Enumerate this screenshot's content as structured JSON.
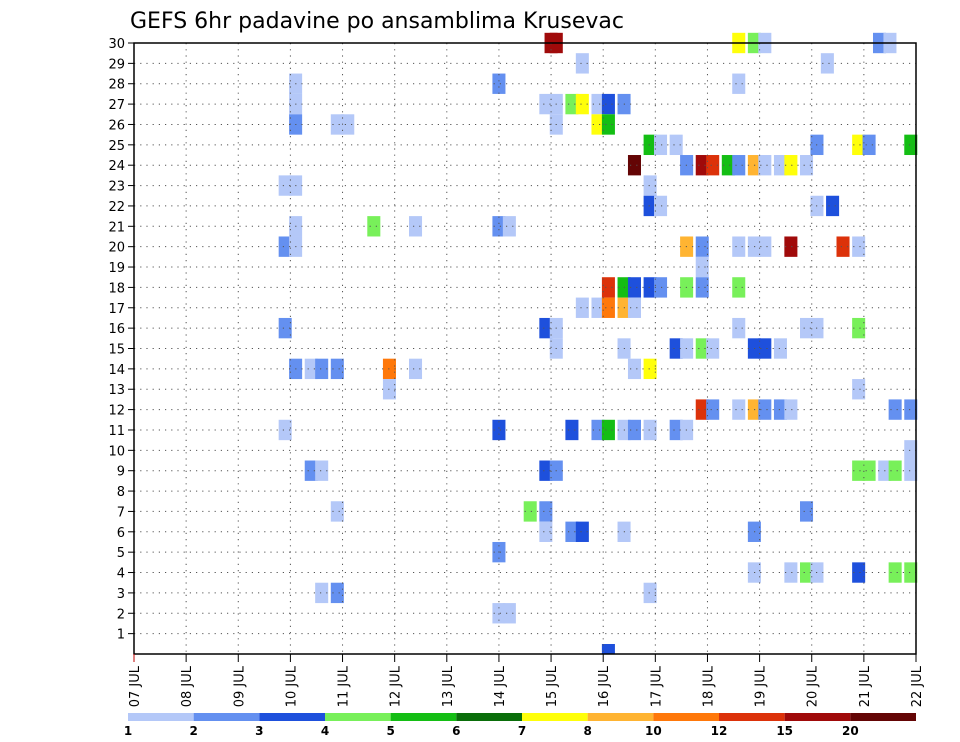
{
  "chart_data": {
    "type": "heatmap",
    "title": "GEFS 6hr padavine po ansamblima Krusevac",
    "xlabel": "",
    "ylabel": "",
    "x_tick_labels": [
      "07 JUL",
      "08 JUL",
      "09 JUL",
      "10 JUL",
      "11 JUL",
      "12 JUL",
      "13 JUL",
      "14 JUL",
      "15 JUL",
      "16 JUL",
      "17 JUL",
      "18 JUL",
      "19 JUL",
      "20 JUL",
      "21 JUL",
      "22 JUL"
    ],
    "x_range_days": [
      7,
      22
    ],
    "y_tick_labels": [
      "1",
      "2",
      "3",
      "4",
      "5",
      "6",
      "7",
      "8",
      "9",
      "10",
      "11",
      "12",
      "13",
      "14",
      "15",
      "16",
      "17",
      "18",
      "19",
      "20",
      "21",
      "22",
      "23",
      "24",
      "25",
      "26",
      "27",
      "28",
      "29",
      "30"
    ],
    "y_range": [
      0,
      30
    ],
    "grid": true,
    "colorbar": {
      "labels": [
        "1",
        "2",
        "3",
        "4",
        "5",
        "6",
        "7",
        "8",
        "10",
        "12",
        "15",
        "20"
      ],
      "colors": [
        "#b4c8f8",
        "#6490f0",
        "#1e50dc",
        "#78f05a",
        "#14be14",
        "#0a6e0a",
        "#ffff0a",
        "#ffb432",
        "#ff780a",
        "#dc320a",
        "#a00a0a",
        "#640505"
      ]
    },
    "cells_note": "each cell: [member, valid-day, colour-bin-lower-edge in mm]",
    "cells": [
      [
        30,
        15.0,
        15
      ],
      [
        30,
        15.1,
        15
      ],
      [
        30,
        18.6,
        7
      ],
      [
        30,
        18.9,
        4
      ],
      [
        30,
        19.1,
        1
      ],
      [
        30,
        21.3,
        2
      ],
      [
        30,
        21.5,
        1
      ],
      [
        29,
        15.6,
        1
      ],
      [
        29,
        20.3,
        1
      ],
      [
        28,
        10.1,
        1
      ],
      [
        28,
        14.0,
        2
      ],
      [
        28,
        18.6,
        1
      ],
      [
        27,
        10.1,
        1
      ],
      [
        27,
        14.9,
        1
      ],
      [
        27,
        15.1,
        1
      ],
      [
        27,
        15.4,
        4
      ],
      [
        27,
        15.6,
        7
      ],
      [
        27,
        15.9,
        1
      ],
      [
        27,
        16.1,
        3
      ],
      [
        27,
        16.4,
        2
      ],
      [
        26,
        10.1,
        2
      ],
      [
        26,
        10.9,
        1
      ],
      [
        26,
        11.1,
        1
      ],
      [
        26,
        15.1,
        1
      ],
      [
        26,
        15.9,
        7
      ],
      [
        26,
        16.1,
        5
      ],
      [
        25,
        16.9,
        5
      ],
      [
        25,
        17.1,
        1
      ],
      [
        25,
        17.4,
        1
      ],
      [
        25,
        20.1,
        2
      ],
      [
        25,
        20.9,
        7
      ],
      [
        25,
        21.1,
        2
      ],
      [
        25,
        21.9,
        5
      ],
      [
        24,
        16.6,
        20
      ],
      [
        24,
        17.6,
        2
      ],
      [
        24,
        17.9,
        15
      ],
      [
        24,
        18.1,
        12
      ],
      [
        24,
        18.4,
        5
      ],
      [
        24,
        18.6,
        2
      ],
      [
        24,
        18.9,
        8
      ],
      [
        24,
        19.1,
        1
      ],
      [
        24,
        19.4,
        1
      ],
      [
        24,
        19.6,
        7
      ],
      [
        24,
        19.9,
        1
      ],
      [
        23,
        9.9,
        1
      ],
      [
        23,
        10.1,
        1
      ],
      [
        23,
        16.9,
        1
      ],
      [
        22,
        16.9,
        3
      ],
      [
        22,
        17.1,
        1
      ],
      [
        22,
        20.1,
        1
      ],
      [
        22,
        20.4,
        3
      ],
      [
        21,
        10.1,
        1
      ],
      [
        21,
        11.6,
        4
      ],
      [
        21,
        12.4,
        1
      ],
      [
        21,
        14.0,
        2
      ],
      [
        21,
        14.2,
        1
      ],
      [
        20,
        9.9,
        2
      ],
      [
        20,
        10.1,
        1
      ],
      [
        20,
        17.6,
        8
      ],
      [
        20,
        17.9,
        2
      ],
      [
        20,
        18.6,
        1
      ],
      [
        20,
        18.9,
        1
      ],
      [
        20,
        19.1,
        1
      ],
      [
        20,
        19.6,
        15
      ],
      [
        20,
        20.6,
        12
      ],
      [
        20,
        20.9,
        1
      ],
      [
        19,
        17.9,
        1
      ],
      [
        18,
        16.1,
        12
      ],
      [
        18,
        16.4,
        5
      ],
      [
        18,
        16.6,
        3
      ],
      [
        18,
        16.9,
        3
      ],
      [
        18,
        17.1,
        2
      ],
      [
        18,
        17.6,
        4
      ],
      [
        18,
        17.9,
        2
      ],
      [
        18,
        18.6,
        4
      ],
      [
        17,
        15.6,
        1
      ],
      [
        17,
        15.9,
        1
      ],
      [
        17,
        16.1,
        10
      ],
      [
        17,
        16.4,
        8
      ],
      [
        17,
        16.6,
        1
      ],
      [
        16,
        9.9,
        2
      ],
      [
        16,
        14.9,
        3
      ],
      [
        16,
        15.1,
        1
      ],
      [
        16,
        18.6,
        1
      ],
      [
        16,
        19.9,
        1
      ],
      [
        16,
        20.1,
        1
      ],
      [
        16,
        20.9,
        4
      ],
      [
        15,
        15.1,
        1
      ],
      [
        15,
        16.4,
        1
      ],
      [
        15,
        17.4,
        3
      ],
      [
        15,
        17.6,
        1
      ],
      [
        15,
        17.9,
        4
      ],
      [
        15,
        18.1,
        1
      ],
      [
        15,
        18.9,
        3
      ],
      [
        15,
        19.1,
        3
      ],
      [
        15,
        19.4,
        1
      ],
      [
        14,
        10.1,
        2
      ],
      [
        14,
        10.4,
        1
      ],
      [
        14,
        10.6,
        2
      ],
      [
        14,
        10.9,
        2
      ],
      [
        14,
        11.9,
        10
      ],
      [
        14,
        12.4,
        1
      ],
      [
        14,
        16.6,
        1
      ],
      [
        14,
        16.9,
        7
      ],
      [
        13,
        11.9,
        1
      ],
      [
        13,
        20.9,
        1
      ],
      [
        12,
        17.9,
        12
      ],
      [
        12,
        18.1,
        2
      ],
      [
        12,
        18.6,
        1
      ],
      [
        12,
        18.9,
        8
      ],
      [
        12,
        19.1,
        2
      ],
      [
        12,
        19.4,
        2
      ],
      [
        12,
        19.6,
        1
      ],
      [
        12,
        21.6,
        2
      ],
      [
        12,
        21.9,
        2
      ],
      [
        11,
        9.9,
        1
      ],
      [
        11,
        14.0,
        3
      ],
      [
        11,
        15.4,
        3
      ],
      [
        11,
        15.9,
        2
      ],
      [
        11,
        16.1,
        5
      ],
      [
        11,
        16.4,
        1
      ],
      [
        11,
        16.6,
        2
      ],
      [
        11,
        16.9,
        1
      ],
      [
        11,
        17.4,
        2
      ],
      [
        11,
        17.6,
        1
      ],
      [
        10,
        21.9,
        1
      ],
      [
        9,
        10.4,
        2
      ],
      [
        9,
        10.6,
        1
      ],
      [
        9,
        14.9,
        3
      ],
      [
        9,
        15.1,
        2
      ],
      [
        9,
        20.9,
        4
      ],
      [
        9,
        21.1,
        4
      ],
      [
        9,
        21.4,
        1
      ],
      [
        9,
        21.6,
        4
      ],
      [
        9,
        21.9,
        1
      ],
      [
        7,
        14.6,
        4
      ],
      [
        7,
        14.9,
        2
      ],
      [
        7,
        10.9,
        1
      ],
      [
        7,
        19.9,
        2
      ],
      [
        6,
        14.9,
        1
      ],
      [
        6,
        15.4,
        2
      ],
      [
        6,
        15.6,
        3
      ],
      [
        6,
        16.4,
        1
      ],
      [
        6,
        18.9,
        2
      ],
      [
        5,
        14.0,
        2
      ],
      [
        4,
        18.9,
        1
      ],
      [
        4,
        19.6,
        1
      ],
      [
        4,
        19.9,
        4
      ],
      [
        4,
        20.1,
        1
      ],
      [
        4,
        20.9,
        3
      ],
      [
        4,
        21.6,
        4
      ],
      [
        4,
        21.9,
        4
      ],
      [
        3,
        10.6,
        1
      ],
      [
        3,
        10.9,
        2
      ],
      [
        3,
        16.9,
        1
      ],
      [
        2,
        14.0,
        1
      ],
      [
        2,
        14.2,
        1
      ],
      [
        0,
        16.1,
        3
      ]
    ]
  }
}
